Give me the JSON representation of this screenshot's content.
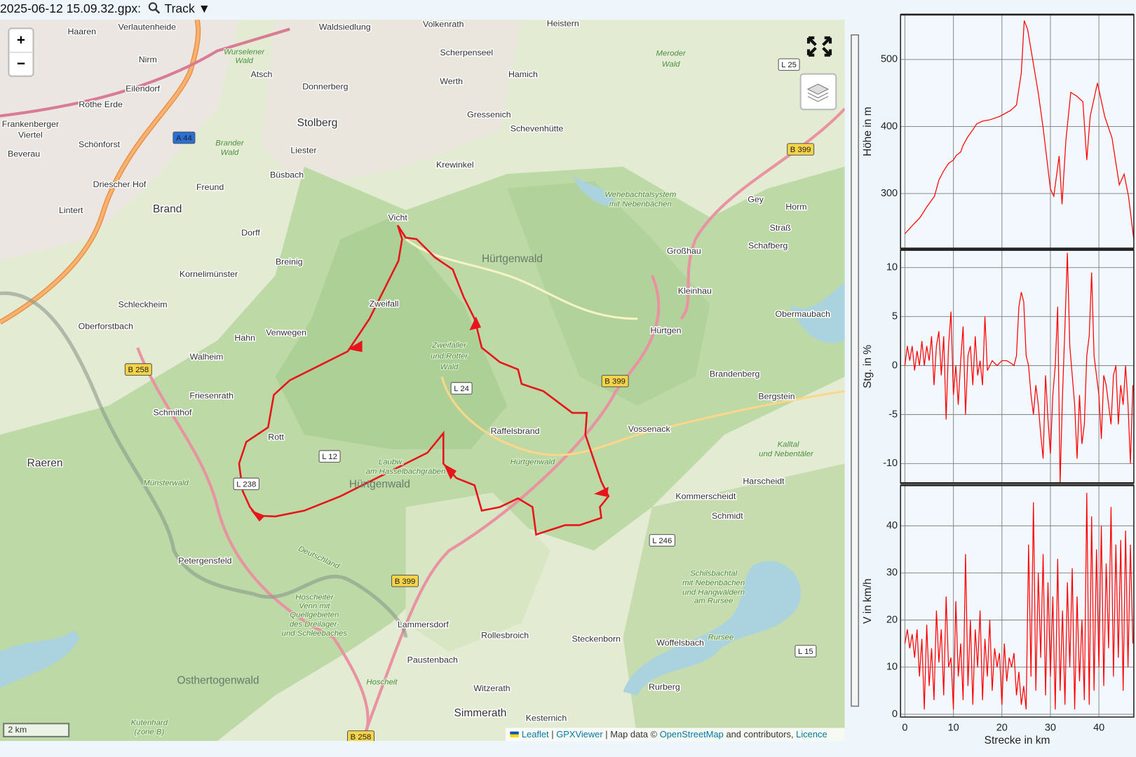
{
  "header": {
    "title": "2025-06-12 15.09.32.gpx:",
    "menu": "Track ▼"
  },
  "map": {
    "zoom_in": "+",
    "zoom_out": "−",
    "scale": "2 km",
    "attribution": [
      "Leaflet",
      "|",
      "GPXViewer",
      "| Map data ©",
      "OpenStreetMap",
      "and contributors,",
      "Licence"
    ],
    "labels": [
      "Haaren",
      "Verlautenheide",
      "Waldsiedlung",
      "Volkenrath",
      "Heistern",
      "Nirm",
      "Atsch",
      "Donnerberg",
      "Scherpenseel",
      "Hamich",
      "Werth",
      "Eilendorf",
      "Rothe Erde",
      "Frankenberger",
      "Viertel",
      "Stolberg",
      "Gressenich",
      "Schevenhütte",
      "Schönforst",
      "Beverau",
      "Liester",
      "Büsbach",
      "Driescher Hof",
      "Freund",
      "Krewinkel",
      "Lintert",
      "Brand",
      "Dorff",
      "Vicht",
      "Gey",
      "Horm",
      "Straß",
      "Kornelimünster",
      "Breinig",
      "Großhau",
      "Schafberg",
      "Schleckheim",
      "Zweifall",
      "Kleinhau",
      "Oberforstbach",
      "Venwegen",
      "Hahn",
      "Obermaubach",
      "Hürtgen",
      "Walheim",
      "Brandenberg",
      "Friesenrath",
      "Bergstein",
      "Schmithof",
      "Raffelsbrand",
      "Vossenack",
      "Rott",
      "Raeren",
      "Harscheidt",
      "Kommerscheidt",
      "Schmidt",
      "Petergensfeld",
      "Lammersdorf",
      "Rollesbroich",
      "Steckenborn",
      "Woffelsbach",
      "Paustenbach",
      "Witzerath",
      "Rurberg",
      "Simmerath",
      "Kesternich"
    ],
    "area_labels": [
      "Hürtgenwald",
      "Hürtgenwald",
      "Osthertogenwald"
    ],
    "forest_labels": [
      "Wurselener",
      "Wald",
      "Brander",
      "Wald",
      "Meroder",
      "Wald",
      "Wehebachtalsystem",
      "mit Nebenbächen",
      "Zweifaller",
      "und Rotter",
      "Wald",
      "Laubw.",
      "am Hasselbachgraben",
      "Hürtgenwald",
      "Kalltal",
      "und Nebentäler",
      "Münsterwald",
      "Deutschland",
      "Schilsbachtal",
      "mit Nebenbächen",
      "und Hangwäldern",
      "am Rursee",
      "Hoscheiter",
      "Venn mit",
      "Quellgebieten",
      "des Dreilager-",
      "und Schleebaches",
      "Rursee",
      "Hoscheit",
      "Kutenhard",
      "(zone B)"
    ],
    "shields": [
      "A 44",
      "B 258",
      "B 399",
      "B 399",
      "B 399",
      "B 258",
      "L 25",
      "L 24",
      "L 12",
      "L 238",
      "L 246",
      "L 15"
    ]
  },
  "chart_data": [
    {
      "type": "line",
      "ylabel": "Höhe in m",
      "color": "#ff0000",
      "grid": true,
      "xtick_labels": false,
      "xlim": [
        -0.9,
        47.2
      ],
      "xticks": [
        0,
        10,
        20,
        30,
        40
      ],
      "ylim": [
        218,
        567
      ],
      "yticks": [
        300,
        400,
        500
      ],
      "x": [
        0,
        1.5,
        3.1,
        4.5,
        6.1,
        7,
        8,
        9,
        10,
        10.6,
        11.5,
        12,
        13,
        14,
        14.8,
        16,
        17.5,
        19.5,
        21.8,
        23,
        24,
        24.6,
        25.3,
        26.3,
        27.5,
        28.5,
        30,
        30.7,
        31.8,
        32.4,
        33.2,
        34.2,
        35.5,
        36.7,
        37.5,
        38.2,
        39.7,
        41.2,
        42.7,
        44.2,
        45.2,
        46.1,
        47.2
      ],
      "values": [
        240,
        252,
        264,
        280,
        296,
        320,
        334,
        345,
        350,
        357,
        362,
        372,
        385,
        395,
        404,
        408,
        410,
        415,
        424,
        432,
        480,
        558,
        545,
        502,
        450,
        398,
        307,
        296,
        356,
        284,
        380,
        451,
        445,
        437,
        350,
        415,
        465,
        415,
        383,
        313,
        329,
        296,
        231
      ]
    },
    {
      "type": "line",
      "ylabel": "Stg. in %",
      "color": "#ff0000",
      "grid": true,
      "xtick_labels": false,
      "xlim": [
        -0.9,
        47.2
      ],
      "xticks": [
        0,
        10,
        20,
        30,
        40
      ],
      "ylim": [
        -12,
        11.8
      ],
      "yticks": [
        -10,
        -5,
        0,
        5,
        10
      ],
      "x": [
        0,
        0.5,
        1,
        1.5,
        2,
        2.5,
        3,
        3.5,
        4,
        4.5,
        5,
        5.5,
        6,
        6.5,
        7,
        7.5,
        8,
        8.5,
        9,
        9.5,
        10,
        10.5,
        11,
        11.5,
        12,
        12.5,
        13,
        13.5,
        14,
        14.5,
        15,
        15.5,
        16,
        16.5,
        17,
        18,
        19,
        20,
        21,
        22,
        22.5,
        23,
        23.5,
        24,
        24.5,
        25,
        25.5,
        26,
        26.5,
        27,
        27.5,
        28,
        28.5,
        29,
        29.5,
        30,
        30.5,
        31,
        31.5,
        32,
        32.5,
        33,
        33.5,
        34,
        34.5,
        35,
        35.5,
        36,
        36.5,
        37,
        37.5,
        38,
        38.5,
        39,
        39.5,
        40,
        40.5,
        41,
        41.5,
        42,
        42.5,
        43,
        43.5,
        44,
        44.5,
        45,
        45.5,
        46,
        46.5,
        47
      ],
      "values": [
        0,
        2,
        0.5,
        2,
        -0.5,
        1.5,
        0,
        2.5,
        0,
        2,
        0.5,
        3,
        -2,
        2,
        3.5,
        -1,
        3,
        -5.5,
        2,
        5.5,
        -3,
        0,
        -4,
        0.5,
        4,
        -5,
        1,
        2,
        -2,
        3,
        -1,
        0.5,
        -2,
        5,
        -0.5,
        0.5,
        0,
        0.5,
        0.5,
        0.2,
        0,
        1,
        6,
        7.5,
        6.5,
        1,
        0,
        -3,
        -5,
        -2,
        -4,
        -7,
        -9.5,
        -1,
        -5.5,
        -9,
        -3,
        0,
        6,
        -12,
        -3,
        4,
        11.5,
        2,
        -1,
        -4,
        -9.5,
        -3,
        -8,
        -6,
        1,
        3,
        9.5,
        1,
        -1,
        -3,
        -7.5,
        -1,
        -2,
        -4,
        -6,
        -1,
        0,
        -6,
        -2,
        -4,
        0,
        -4,
        -10,
        -2
      ]
    },
    {
      "type": "line",
      "ylabel": "V in km/h",
      "xlabel": "Strecke in km",
      "color": "#ff0000",
      "grid": true,
      "xtick_labels": true,
      "xlim": [
        -0.9,
        47.2
      ],
      "xticks": [
        0,
        10,
        20,
        30,
        40
      ],
      "ylim": [
        -0.6,
        48.6
      ],
      "yticks": [
        0,
        10,
        20,
        30,
        40
      ],
      "x": [
        0,
        0.5,
        1,
        1.5,
        2,
        2.5,
        3,
        3.5,
        4,
        4.5,
        5,
        5.5,
        6,
        6.5,
        7,
        7.5,
        8,
        8.5,
        9,
        9.5,
        10,
        10.5,
        11,
        11.5,
        12,
        12.5,
        13,
        13.5,
        14,
        14.5,
        15,
        15.5,
        16,
        16.5,
        17,
        17.5,
        18,
        18.5,
        19,
        19.5,
        20,
        20.5,
        21,
        21.5,
        22,
        22.5,
        23,
        23.5,
        24,
        24.5,
        25,
        25.5,
        26,
        26.5,
        27,
        27.5,
        28,
        28.5,
        29,
        29.5,
        30,
        30.5,
        31,
        31.5,
        32,
        32.5,
        33,
        33.5,
        34,
        34.5,
        35,
        35.5,
        36,
        36.5,
        37,
        37.5,
        38,
        38.5,
        39,
        39.5,
        40,
        40.5,
        41,
        41.5,
        42,
        42.5,
        43,
        43.5,
        44,
        44.5,
        45,
        45.5,
        46,
        46.5,
        47
      ],
      "values": [
        15,
        18,
        14,
        17,
        12,
        18,
        8,
        16,
        1,
        19,
        6,
        14,
        3,
        22,
        11,
        18,
        4,
        25,
        10,
        12,
        1,
        24,
        8,
        15,
        3,
        34,
        6,
        20,
        2,
        18,
        10,
        22,
        3,
        16,
        8,
        20,
        5,
        14,
        10,
        13,
        2,
        15,
        7,
        12,
        10,
        13,
        4,
        9,
        2,
        6,
        1,
        36,
        8,
        45,
        5,
        30,
        12,
        34,
        4,
        28,
        8,
        25,
        1,
        33,
        5,
        22,
        2,
        28,
        10,
        31,
        1,
        25,
        7,
        20,
        3,
        47,
        2,
        42,
        5,
        35,
        10,
        40,
        6,
        32,
        14,
        44,
        8,
        36,
        12,
        37,
        5,
        39,
        10,
        36,
        15
      ]
    }
  ]
}
